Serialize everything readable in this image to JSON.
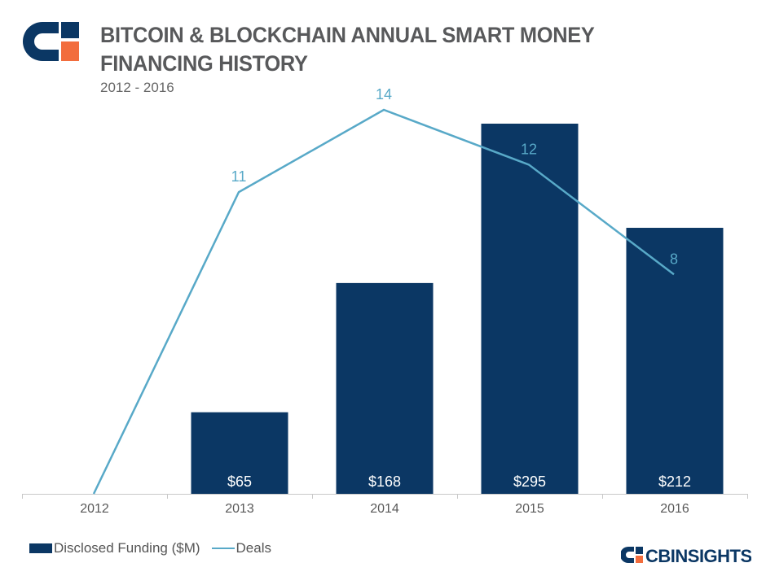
{
  "header": {
    "title": "BITCOIN & BLOCKCHAIN ANNUAL SMART MONEY FINANCING HISTORY",
    "subtitle": "2012 - 2016"
  },
  "brand": {
    "logo_text": "CBINSIGHTS"
  },
  "colors": {
    "bar": "#0b3764",
    "line": "#58a9c8",
    "axis": "#c8c8c8",
    "logo_orange": "#f26d3d"
  },
  "chart_data": {
    "type": "bar",
    "categories": [
      "2012",
      "2013",
      "2014",
      "2015",
      "2016"
    ],
    "series": [
      {
        "name": "Disclosed Funding ($M)",
        "type": "bar",
        "values": [
          0,
          65,
          168,
          295,
          212
        ],
        "labels": [
          "",
          "$65",
          "$168",
          "$295",
          "$212"
        ]
      },
      {
        "name": "Deals",
        "type": "line",
        "values": [
          0,
          11,
          14,
          12,
          8
        ],
        "labels": [
          "",
          "11",
          "14",
          "12",
          "8"
        ]
      }
    ],
    "grid": false,
    "legend": "bottom-left"
  }
}
